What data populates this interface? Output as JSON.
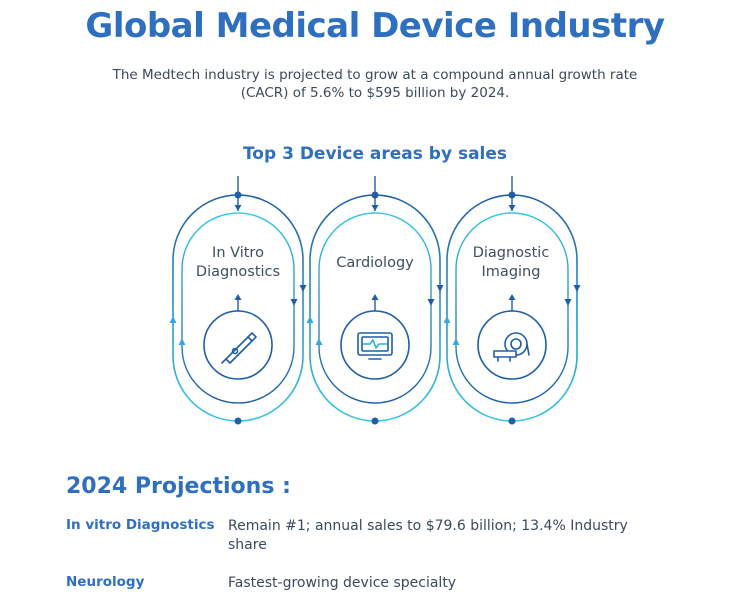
{
  "header": {
    "title": "Global Medical Device Industry",
    "subtitle": "The Medtech industry is projected to grow at a compound annual growth rate (CACR) of 5.6% to $595 billion by 2024."
  },
  "areas": {
    "heading": "Top 3 Device areas by sales",
    "items": [
      {
        "label_line1": "In Vitro",
        "label_line2": "Diagnostics",
        "icon": "thermometer-icon"
      },
      {
        "label_line1": "Cardiology",
        "label_line2": "",
        "icon": "heart-monitor-icon"
      },
      {
        "label_line1": "Diagnostic",
        "label_line2": "Imaging",
        "icon": "mri-scanner-icon"
      }
    ]
  },
  "projections": {
    "heading": "2024 Projections :",
    "rows": [
      {
        "key": "In vitro Diagnostics",
        "value": "Remain #1; annual sales to $79.6 billion; 13.4% Industry share"
      },
      {
        "key": "Neurology",
        "value": "Fastest-growing device specialty"
      }
    ]
  },
  "colors": {
    "primary": "#2e6fc0",
    "accent_dark": "#1f5ea8",
    "accent_light": "#35c6e6",
    "text": "#3a4a5c"
  }
}
